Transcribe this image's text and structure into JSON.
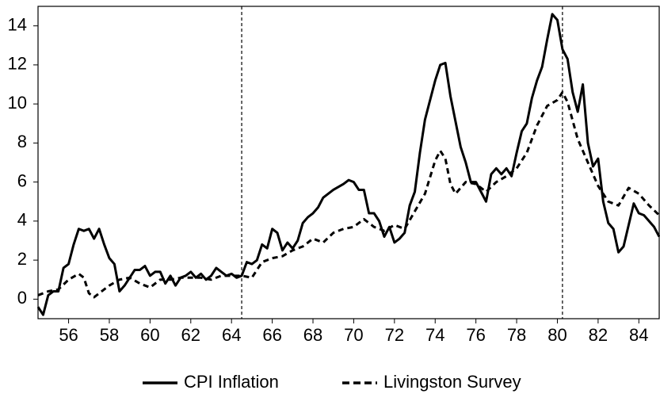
{
  "chart_data": {
    "type": "line",
    "xlim": [
      54.5,
      85
    ],
    "ylim": [
      -1,
      15
    ],
    "xticks": [
      56,
      58,
      60,
      62,
      64,
      66,
      68,
      70,
      72,
      74,
      76,
      78,
      80,
      82,
      84
    ],
    "yticks": [
      0,
      2,
      4,
      6,
      8,
      10,
      12,
      14
    ],
    "vlines": [
      64.5,
      80.25
    ],
    "legend": "bottom",
    "series": [
      {
        "name": "CPI Inflation",
        "color": "#000000",
        "dash": false,
        "x": [
          54.5,
          54.75,
          55,
          55.25,
          55.5,
          55.75,
          56,
          56.25,
          56.5,
          56.75,
          57,
          57.25,
          57.5,
          57.75,
          58,
          58.25,
          58.5,
          58.75,
          59,
          59.25,
          59.5,
          59.75,
          60,
          60.25,
          60.5,
          60.75,
          61,
          61.25,
          61.5,
          61.75,
          62,
          62.25,
          62.5,
          62.75,
          63,
          63.25,
          63.5,
          63.75,
          64,
          64.25,
          64.5,
          64.75,
          65,
          65.25,
          65.5,
          65.75,
          66,
          66.25,
          66.5,
          66.75,
          67,
          67.25,
          67.5,
          67.75,
          68,
          68.25,
          68.5,
          69,
          69.5,
          69.75,
          70,
          70.25,
          70.5,
          70.75,
          71,
          71.25,
          71.5,
          71.75,
          72,
          72.25,
          72.5,
          72.75,
          73,
          73.25,
          73.5,
          73.75,
          74,
          74.25,
          74.5,
          74.75,
          75,
          75.25,
          75.5,
          75.75,
          76,
          76.5,
          76.75,
          77,
          77.25,
          77.5,
          77.75,
          78,
          78.25,
          78.5,
          78.75,
          79,
          79.25,
          79.5,
          79.75,
          80,
          80.25,
          80.5,
          80.75,
          81,
          81.25,
          81.5,
          81.75,
          82,
          82.25,
          82.5,
          82.75,
          83,
          83.25,
          83.5,
          83.75,
          84,
          84.25,
          84.5,
          84.75,
          85
        ],
        "values": [
          -0.4,
          -0.8,
          0.2,
          0.4,
          0.4,
          1.6,
          1.8,
          2.8,
          3.6,
          3.5,
          3.6,
          3.1,
          3.6,
          2.8,
          2.1,
          1.8,
          0.4,
          0.7,
          1.1,
          1.5,
          1.5,
          1.7,
          1.2,
          1.4,
          1.4,
          0.8,
          1.2,
          0.7,
          1.1,
          1.2,
          1.4,
          1.1,
          1.3,
          1.0,
          1.2,
          1.6,
          1.4,
          1.2,
          1.3,
          1.1,
          1.2,
          1.9,
          1.8,
          2.0,
          2.8,
          2.6,
          3.6,
          3.4,
          2.5,
          2.9,
          2.6,
          3.0,
          3.9,
          4.2,
          4.4,
          4.7,
          5.2,
          5.6,
          5.9,
          6.1,
          6.0,
          5.6,
          5.6,
          4.4,
          4.4,
          4.0,
          3.2,
          3.7,
          2.9,
          3.1,
          3.4,
          4.8,
          5.5,
          7.5,
          9.2,
          10.2,
          11.2,
          12.0,
          12.1,
          10.4,
          9.1,
          7.8,
          7.0,
          6.0,
          6.0,
          5.0,
          6.4,
          6.7,
          6.4,
          6.7,
          6.3,
          7.5,
          8.6,
          9.0,
          10.3,
          11.2,
          11.9,
          13.3,
          14.6,
          14.3,
          12.8,
          12.3,
          10.6,
          9.6,
          11.0,
          8.0,
          6.8,
          7.2,
          5.0,
          3.9,
          3.6,
          2.4,
          2.7,
          3.8,
          4.9,
          4.4,
          4.3,
          4.0,
          3.7,
          3.2
        ]
      },
      {
        "name": "Livingston Survey",
        "color": "#000000",
        "dash": true,
        "x": [
          54.5,
          55,
          55.5,
          56,
          56.5,
          56.75,
          57,
          57.25,
          57.5,
          58,
          58.5,
          59,
          59.5,
          60,
          60.5,
          61,
          61.5,
          62,
          62.5,
          63,
          63.5,
          64,
          64.5,
          65,
          65.5,
          66,
          66.5,
          67,
          67.5,
          68,
          68.5,
          69,
          69.5,
          70,
          70.5,
          71,
          71.5,
          72,
          72.5,
          73,
          73.5,
          74,
          74.25,
          74.5,
          74.75,
          75,
          75.5,
          76,
          76.5,
          77,
          77.5,
          78,
          78.5,
          79,
          79.5,
          80,
          80.25,
          80.5,
          81,
          81.5,
          82,
          82.5,
          83,
          83.5,
          84,
          84.5,
          85
        ],
        "values": [
          0.2,
          0.4,
          0.5,
          1.0,
          1.3,
          1.1,
          0.3,
          0.1,
          0.3,
          0.7,
          1.0,
          1.1,
          0.8,
          0.6,
          1.0,
          1.0,
          1.1,
          1.1,
          1.1,
          1.0,
          1.2,
          1.2,
          1.2,
          1.1,
          1.9,
          2.1,
          2.2,
          2.5,
          2.7,
          3.1,
          2.9,
          3.4,
          3.6,
          3.7,
          4.1,
          3.7,
          3.5,
          3.8,
          3.6,
          4.5,
          5.4,
          7.1,
          7.6,
          7.2,
          5.9,
          5.4,
          6.0,
          5.9,
          5.5,
          6.0,
          6.3,
          6.7,
          7.5,
          8.9,
          9.9,
          10.2,
          10.6,
          10.1,
          8.2,
          7.0,
          5.8,
          5.0,
          4.8,
          5.7,
          5.4,
          4.8,
          4.3
        ]
      }
    ]
  }
}
